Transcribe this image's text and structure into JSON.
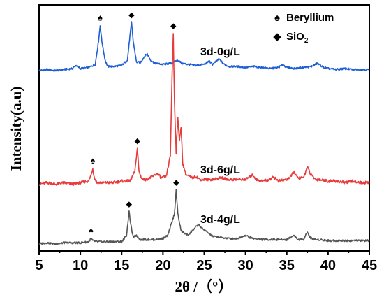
{
  "chart_data": {
    "type": "line",
    "xlabel": "2θ /（°）",
    "ylabel": "Intensity(a.u)",
    "xlim": [
      5,
      45
    ],
    "x_ticks": [
      5,
      10,
      15,
      20,
      25,
      30,
      35,
      40,
      45
    ],
    "y_ticks_shown": false,
    "legend": [
      {
        "symbol": "spade",
        "label": "Beryllium"
      },
      {
        "symbol": "diamond",
        "label": "SiO",
        "subscript": "2"
      }
    ],
    "series": [
      {
        "name": "3d-0g/L",
        "color": "#1f5fd6",
        "baseline": 0.0,
        "points": [
          [
            5,
            0.02
          ],
          [
            6,
            0.03
          ],
          [
            7,
            0.02
          ],
          [
            8,
            0.03
          ],
          [
            9,
            0.04
          ],
          [
            9.5,
            0.07
          ],
          [
            10,
            0.04
          ],
          [
            11,
            0.05
          ],
          [
            11.8,
            0.08
          ],
          [
            12.2,
            0.3
          ],
          [
            12.4,
            0.45
          ],
          [
            12.6,
            0.3
          ],
          [
            13,
            0.12
          ],
          [
            13.3,
            0.06
          ],
          [
            14,
            0.06
          ],
          [
            15,
            0.07
          ],
          [
            15.7,
            0.12
          ],
          [
            16.0,
            0.35
          ],
          [
            16.2,
            0.48
          ],
          [
            16.4,
            0.3
          ],
          [
            16.8,
            0.1
          ],
          [
            17.3,
            0.1
          ],
          [
            17.8,
            0.16
          ],
          [
            18.1,
            0.18
          ],
          [
            18.5,
            0.12
          ],
          [
            19,
            0.09
          ],
          [
            20,
            0.08
          ],
          [
            21,
            0.09
          ],
          [
            21.8,
            0.12
          ],
          [
            22.3,
            0.09
          ],
          [
            23,
            0.08
          ],
          [
            24,
            0.07
          ],
          [
            25,
            0.08
          ],
          [
            25.6,
            0.11
          ],
          [
            26,
            0.08
          ],
          [
            26.8,
            0.13
          ],
          [
            27.4,
            0.08
          ],
          [
            28,
            0.06
          ],
          [
            29,
            0.06
          ],
          [
            30,
            0.05
          ],
          [
            31,
            0.06
          ],
          [
            32,
            0.05
          ],
          [
            33,
            0.04
          ],
          [
            34,
            0.05
          ],
          [
            34.5,
            0.08
          ],
          [
            35,
            0.05
          ],
          [
            36,
            0.04
          ],
          [
            37,
            0.05
          ],
          [
            38,
            0.06
          ],
          [
            38.7,
            0.09
          ],
          [
            39.5,
            0.05
          ],
          [
            40,
            0.04
          ],
          [
            41,
            0.03
          ],
          [
            42,
            0.04
          ],
          [
            43,
            0.03
          ],
          [
            44,
            0.03
          ],
          [
            45,
            0.03
          ]
        ]
      },
      {
        "name": "3d-6g/L",
        "color": "#e83b3b",
        "baseline": 0.0,
        "points": [
          [
            5,
            0.02
          ],
          [
            6,
            0.03
          ],
          [
            7,
            0.02
          ],
          [
            8,
            0.03
          ],
          [
            9,
            0.02
          ],
          [
            10,
            0.03
          ],
          [
            11,
            0.04
          ],
          [
            11.3,
            0.08
          ],
          [
            11.5,
            0.12
          ],
          [
            11.7,
            0.06
          ],
          [
            12,
            0.03
          ],
          [
            13,
            0.03
          ],
          [
            14,
            0.03
          ],
          [
            15,
            0.04
          ],
          [
            16,
            0.04
          ],
          [
            16.6,
            0.1
          ],
          [
            16.9,
            0.25
          ],
          [
            17.1,
            0.1
          ],
          [
            17.5,
            0.05
          ],
          [
            18,
            0.05
          ],
          [
            18.8,
            0.07
          ],
          [
            19.3,
            0.09
          ],
          [
            19.8,
            0.06
          ],
          [
            20.4,
            0.07
          ],
          [
            20.9,
            0.2
          ],
          [
            21.1,
            0.7
          ],
          [
            21.25,
            0.98
          ],
          [
            21.4,
            0.55
          ],
          [
            21.6,
            0.22
          ],
          [
            21.8,
            0.45
          ],
          [
            22.0,
            0.3
          ],
          [
            22.2,
            0.38
          ],
          [
            22.4,
            0.15
          ],
          [
            22.8,
            0.08
          ],
          [
            23.5,
            0.06
          ],
          [
            24,
            0.07
          ],
          [
            24.5,
            0.05
          ],
          [
            25,
            0.05
          ],
          [
            26,
            0.05
          ],
          [
            27,
            0.06
          ],
          [
            28,
            0.05
          ],
          [
            29,
            0.05
          ],
          [
            30,
            0.05
          ],
          [
            30.9,
            0.08
          ],
          [
            31.3,
            0.05
          ],
          [
            32,
            0.04
          ],
          [
            33,
            0.05
          ],
          [
            33.3,
            0.07
          ],
          [
            34,
            0.04
          ],
          [
            35,
            0.05
          ],
          [
            35.5,
            0.07
          ],
          [
            35.9,
            0.1
          ],
          [
            36.3,
            0.06
          ],
          [
            37,
            0.06
          ],
          [
            37.5,
            0.13
          ],
          [
            37.9,
            0.08
          ],
          [
            38.5,
            0.05
          ],
          [
            39,
            0.05
          ],
          [
            40,
            0.04
          ],
          [
            41,
            0.04
          ],
          [
            42,
            0.03
          ],
          [
            43,
            0.04
          ],
          [
            44,
            0.03
          ],
          [
            45,
            0.03
          ]
        ]
      },
      {
        "name": "3d-4g/L",
        "color": "#555555",
        "baseline": 0.0,
        "points": [
          [
            5,
            0.02
          ],
          [
            6,
            0.03
          ],
          [
            7,
            0.02
          ],
          [
            8,
            0.03
          ],
          [
            9,
            0.03
          ],
          [
            10,
            0.03
          ],
          [
            11,
            0.04
          ],
          [
            11.3,
            0.07
          ],
          [
            11.5,
            0.05
          ],
          [
            12,
            0.04
          ],
          [
            13,
            0.04
          ],
          [
            14,
            0.04
          ],
          [
            15,
            0.04
          ],
          [
            15.6,
            0.1
          ],
          [
            15.9,
            0.32
          ],
          [
            16.1,
            0.2
          ],
          [
            16.4,
            0.08
          ],
          [
            16.8,
            0.1
          ],
          [
            17.2,
            0.06
          ],
          [
            18,
            0.06
          ],
          [
            19,
            0.06
          ],
          [
            20,
            0.07
          ],
          [
            20.6,
            0.1
          ],
          [
            21.0,
            0.2
          ],
          [
            21.4,
            0.3
          ],
          [
            21.6,
            0.52
          ],
          [
            21.8,
            0.3
          ],
          [
            22.2,
            0.14
          ],
          [
            23,
            0.1
          ],
          [
            23.8,
            0.16
          ],
          [
            24.3,
            0.2
          ],
          [
            24.8,
            0.16
          ],
          [
            25.5,
            0.12
          ],
          [
            26,
            0.09
          ],
          [
            27,
            0.08
          ],
          [
            28,
            0.07
          ],
          [
            29,
            0.07
          ],
          [
            30,
            0.1
          ],
          [
            30.5,
            0.08
          ],
          [
            31,
            0.07
          ],
          [
            32,
            0.06
          ],
          [
            33,
            0.06
          ],
          [
            34,
            0.06
          ],
          [
            35,
            0.06
          ],
          [
            35.9,
            0.1
          ],
          [
            36.3,
            0.06
          ],
          [
            37,
            0.06
          ],
          [
            37.5,
            0.13
          ],
          [
            37.8,
            0.08
          ],
          [
            38.5,
            0.06
          ],
          [
            39,
            0.06
          ],
          [
            40,
            0.05
          ],
          [
            41,
            0.05
          ],
          [
            42,
            0.05
          ],
          [
            43,
            0.05
          ],
          [
            44,
            0.05
          ],
          [
            45,
            0.05
          ]
        ]
      }
    ],
    "annotations": [
      {
        "series": "3d-0g/L",
        "x": 12.4,
        "symbol": "spade"
      },
      {
        "series": "3d-0g/L",
        "x": 16.2,
        "symbol": "diamond"
      },
      {
        "series": "3d-6g/L",
        "x": 11.5,
        "symbol": "spade"
      },
      {
        "series": "3d-6g/L",
        "x": 16.9,
        "symbol": "diamond"
      },
      {
        "series": "3d-6g/L",
        "x": 21.25,
        "symbol": "diamond"
      },
      {
        "series": "3d-4g/L",
        "x": 11.3,
        "symbol": "spade"
      },
      {
        "series": "3d-4g/L",
        "x": 15.9,
        "symbol": "diamond"
      },
      {
        "series": "3d-4g/L",
        "x": 21.6,
        "symbol": "diamond"
      }
    ]
  }
}
